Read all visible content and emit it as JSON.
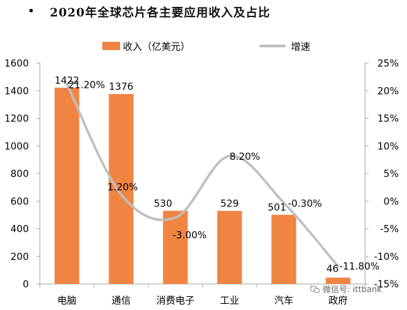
{
  "title": "2020年全球芯片各主要应用收入及占比",
  "watermark": "微信号: ittbank",
  "chart_data": {
    "type": "bar+line",
    "categories": [
      "电脑",
      "通信",
      "消费电子",
      "工业",
      "汽车",
      "政府"
    ],
    "series": [
      {
        "name": "收入（亿美元）",
        "type": "bar",
        "axis": "left",
        "values": [
          1422,
          1376,
          530,
          529,
          501,
          46
        ],
        "labels": [
          "1422",
          "1376",
          "530",
          "529",
          "501",
          "46"
        ],
        "color": "#F08443"
      },
      {
        "name": "增速",
        "type": "line",
        "axis": "right",
        "values": [
          21.2,
          1.2,
          -3.0,
          8.2,
          -0.3,
          -11.8
        ],
        "labels": [
          "21.20%",
          "1.20%",
          "-3.00%",
          "8.20%",
          "-0.30%",
          "-11.80%"
        ],
        "color": "#BFBFBF"
      }
    ],
    "y_left": {
      "min": 0,
      "max": 1600,
      "step": 200,
      "ticks": [
        "0",
        "200",
        "400",
        "600",
        "800",
        "1000",
        "1200",
        "1400",
        "1600"
      ]
    },
    "y_right": {
      "min": -15,
      "max": 25,
      "step": 5,
      "ticks": [
        "-15%",
        "-10%",
        "-5%",
        "0%",
        "5%",
        "10%",
        "15%",
        "20%",
        "25%"
      ]
    },
    "grid": false,
    "legend_position": "top"
  }
}
